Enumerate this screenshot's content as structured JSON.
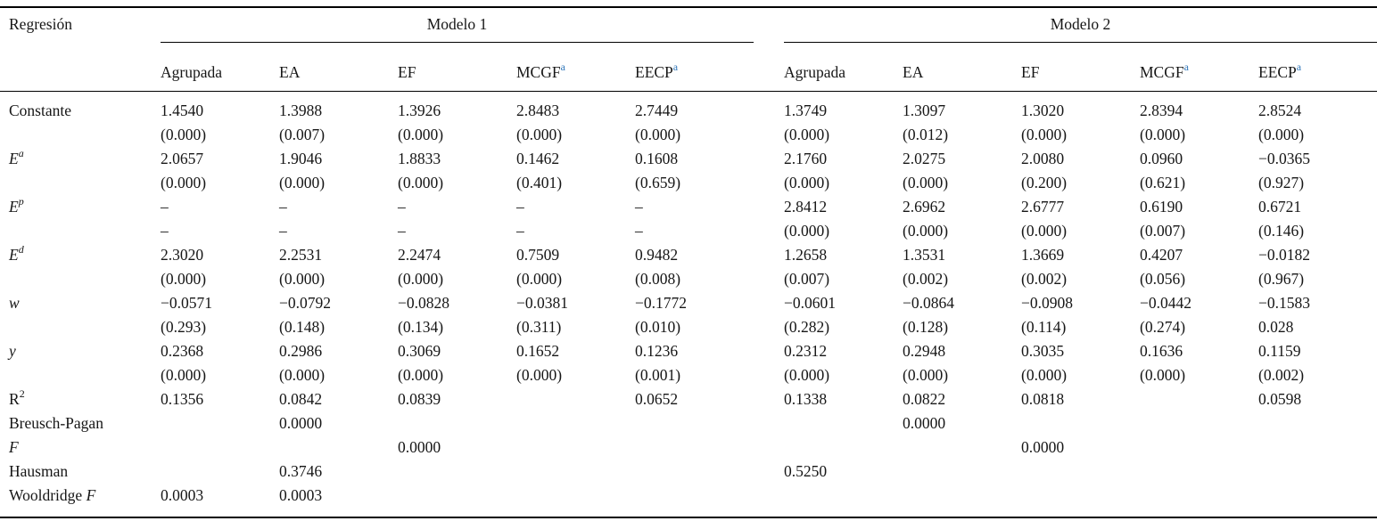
{
  "accent": {
    "footnote_sup_color": "#2f76b9"
  },
  "table": {
    "corner_label": "Regresión",
    "groups": [
      {
        "label": "Modelo 1"
      },
      {
        "label": "Modelo 2"
      }
    ],
    "columns": [
      {
        "label": "Agrupada",
        "sup": ""
      },
      {
        "label": "EA",
        "sup": ""
      },
      {
        "label": "EF",
        "sup": ""
      },
      {
        "label": "MCGF",
        "sup": "a"
      },
      {
        "label": "EECP",
        "sup": "a"
      }
    ],
    "rows": [
      {
        "label": [
          {
            "t": "Constante"
          }
        ],
        "cells": [
          "1.4540",
          "1.3988",
          "1.3926",
          "2.8483",
          "2.7449",
          "1.3749",
          "1.3097",
          "1.3020",
          "2.8394",
          "2.8524"
        ]
      },
      {
        "label": [],
        "cells": [
          "(0.000)",
          "(0.007)",
          "(0.000)",
          "(0.000)",
          "(0.000)",
          "(0.000)",
          "(0.012)",
          "(0.000)",
          "(0.000)",
          "(0.000)"
        ]
      },
      {
        "label": [
          {
            "t": "E",
            "i": true
          },
          {
            "t": "a",
            "i": true,
            "s": true
          }
        ],
        "cells": [
          "2.0657",
          "1.9046",
          "1.8833",
          "0.1462",
          "0.1608",
          "2.1760",
          "2.0275",
          "2.0080",
          "0.0960",
          "−0.0365"
        ]
      },
      {
        "label": [],
        "cells": [
          "(0.000)",
          "(0.000)",
          "(0.000)",
          "(0.401)",
          "(0.659)",
          "(0.000)",
          "(0.000)",
          "(0.200)",
          "(0.621)",
          "(0.927)"
        ]
      },
      {
        "label": [
          {
            "t": "E",
            "i": true
          },
          {
            "t": "p",
            "i": true,
            "s": true
          }
        ],
        "cells": [
          "–",
          "–",
          "–",
          "–",
          "–",
          "2.8412",
          "2.6962",
          "2.6777",
          "0.6190",
          "0.6721"
        ]
      },
      {
        "label": [],
        "cells": [
          "–",
          "–",
          "–",
          "–",
          "–",
          "(0.000)",
          "(0.000)",
          "(0.000)",
          "(0.007)",
          "(0.146)"
        ]
      },
      {
        "label": [
          {
            "t": "E",
            "i": true
          },
          {
            "t": "d",
            "i": true,
            "s": true
          }
        ],
        "cells": [
          "2.3020",
          "2.2531",
          "2.2474",
          "0.7509",
          "0.9482",
          "1.2658",
          "1.3531",
          "1.3669",
          "0.4207",
          "−0.0182"
        ]
      },
      {
        "label": [],
        "cells": [
          "(0.000)",
          "(0.000)",
          "(0.000)",
          "(0.000)",
          "(0.008)",
          "(0.007)",
          "(0.002)",
          "(0.002)",
          "(0.056)",
          "(0.967)"
        ]
      },
      {
        "label": [
          {
            "t": "w",
            "i": true
          }
        ],
        "cells": [
          "−0.0571",
          "−0.0792",
          "−0.0828",
          "−0.0381",
          "−0.1772",
          "−0.0601",
          "−0.0864",
          "−0.0908",
          "−0.0442",
          "−0.1583"
        ]
      },
      {
        "label": [],
        "cells": [
          "(0.293)",
          "(0.148)",
          "(0.134)",
          "(0.311)",
          "(0.010)",
          "(0.282)",
          "(0.128)",
          "(0.114)",
          "(0.274)",
          "0.028"
        ]
      },
      {
        "label": [
          {
            "t": "y",
            "i": true
          }
        ],
        "cells": [
          "0.2368",
          "0.2986",
          "0.3069",
          "0.1652",
          "0.1236",
          "0.2312",
          "0.2948",
          "0.3035",
          "0.1636",
          "0.1159"
        ]
      },
      {
        "label": [],
        "cells": [
          "(0.000)",
          "(0.000)",
          "(0.000)",
          "(0.000)",
          "(0.001)",
          "(0.000)",
          "(0.000)",
          "(0.000)",
          "(0.000)",
          "(0.002)"
        ]
      },
      {
        "label": [
          {
            "t": "R"
          },
          {
            "t": "2",
            "s": true
          }
        ],
        "cells": [
          "0.1356",
          "0.0842",
          "0.0839",
          "",
          "0.0652",
          "0.1338",
          "0.0822",
          "0.0818",
          "",
          "0.0598"
        ]
      },
      {
        "label": [
          {
            "t": "Breusch-Pagan"
          }
        ],
        "cells": [
          "",
          "0.0000",
          "",
          "",
          "",
          "",
          "0.0000",
          "",
          "",
          ""
        ]
      },
      {
        "label": [
          {
            "t": "F",
            "i": true
          }
        ],
        "cells": [
          "",
          "",
          "0.0000",
          "",
          "",
          "",
          "",
          "0.0000",
          "",
          ""
        ]
      },
      {
        "label": [
          {
            "t": "Hausman"
          }
        ],
        "cells": [
          "",
          "0.3746",
          "",
          "",
          "",
          "0.5250",
          "",
          "",
          "",
          ""
        ]
      },
      {
        "label": [
          {
            "t": "Wooldridge "
          },
          {
            "t": "F",
            "i": true
          }
        ],
        "cells": [
          "0.0003",
          "0.0003",
          "",
          "",
          "",
          "",
          "",
          "",
          "",
          ""
        ]
      }
    ]
  }
}
